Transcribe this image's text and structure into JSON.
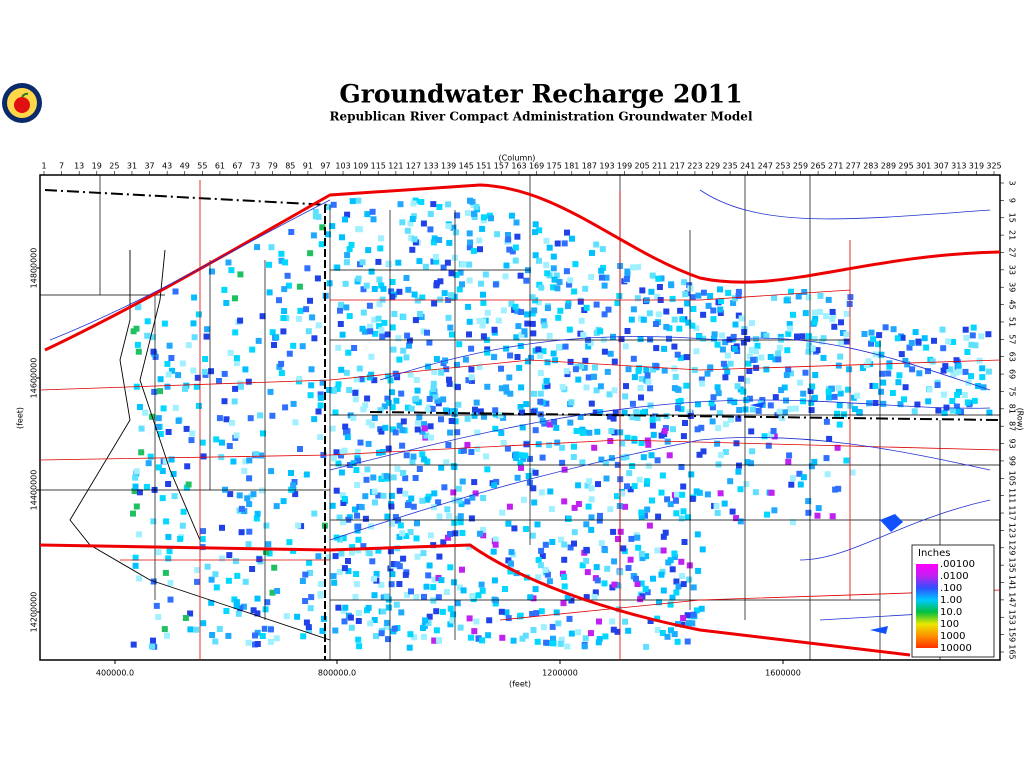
{
  "title": "Groundwater Recharge 2011",
  "subtitle": "Republican River Compact Administration Groundwater Model",
  "column_axis": {
    "label": "(Column)",
    "ticks": [
      1,
      7,
      13,
      19,
      25,
      31,
      37,
      43,
      49,
      55,
      61,
      67,
      73,
      79,
      85,
      91,
      97,
      103,
      109,
      115,
      121,
      127,
      133,
      139,
      145,
      151,
      157,
      163,
      169,
      175,
      181,
      187,
      193,
      199,
      205,
      211,
      217,
      223,
      229,
      235,
      241,
      247,
      253,
      259,
      265,
      271,
      277,
      283,
      289,
      295,
      301,
      307,
      313,
      319,
      325
    ]
  },
  "row_axis": {
    "label": "(Row)",
    "ticks": [
      3,
      9,
      15,
      21,
      27,
      33,
      39,
      45,
      51,
      57,
      63,
      69,
      75,
      81,
      87,
      93,
      99,
      105,
      111,
      117,
      123,
      129,
      135,
      141,
      147,
      153,
      159,
      165
    ]
  },
  "x_axis": {
    "label": "(feet)",
    "ticks": [
      "400000.0",
      "800000.0",
      "1200000",
      "1600000"
    ]
  },
  "y_axis": {
    "label": "(feet)",
    "ticks": [
      "14200000",
      "14400000",
      "14600000",
      "14800000"
    ]
  },
  "legend": {
    "title": "Inches",
    "entries": [
      {
        "label": ".00100",
        "color": "#ff00ff"
      },
      {
        "label": ".0100",
        "color": "#c020f0"
      },
      {
        "label": ".100",
        "color": "#3050ff"
      },
      {
        "label": "1.00",
        "color": "#00c8ff"
      },
      {
        "label": "10.0",
        "color": "#00c040"
      },
      {
        "label": "100",
        "color": "#e8e800"
      },
      {
        "label": "1000",
        "color": "#ff9000"
      },
      {
        "label": "10000",
        "color": "#ff3000"
      }
    ]
  }
}
